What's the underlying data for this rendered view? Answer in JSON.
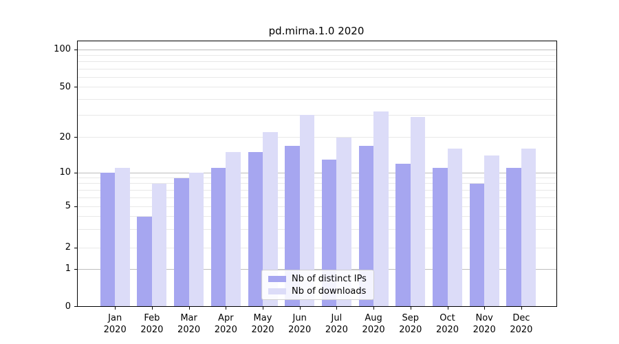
{
  "chart_data": {
    "type": "bar",
    "title": "pd.mirna.1.0 2020",
    "categories": [
      "Jan",
      "Feb",
      "Mar",
      "Apr",
      "May",
      "Jun",
      "Jul",
      "Aug",
      "Sep",
      "Oct",
      "Nov",
      "Dec"
    ],
    "category_year": "2020",
    "series": [
      {
        "name": "Nb of distinct IPs",
        "color": "#a6a6f0",
        "values": [
          10,
          4,
          9,
          11,
          15,
          17,
          13,
          17,
          12,
          11,
          8,
          11
        ]
      },
      {
        "name": "Nb of downloads",
        "color": "#dcdcf8",
        "values": [
          11,
          8,
          10,
          15,
          22,
          30,
          20,
          32,
          29,
          16,
          14,
          16
        ]
      }
    ],
    "y_axis": {
      "scale": "symlog",
      "tick_values": [
        0,
        1,
        2,
        5,
        10,
        20,
        50,
        100
      ],
      "tick_labels": [
        "0",
        "1",
        "2",
        "5",
        "10",
        "20",
        "50",
        "100"
      ],
      "minor_gridlines": [
        3,
        4,
        6,
        7,
        8,
        9,
        30,
        40,
        60,
        70,
        80,
        90
      ],
      "ylim": [
        0,
        116
      ],
      "major_gridline_values": [
        1,
        10,
        100
      ]
    },
    "xlabel": "",
    "ylabel": "",
    "grid": true,
    "legend": {
      "position": "lower-center-inside",
      "entries": [
        "Nb of distinct IPs",
        "Nb of downloads"
      ]
    }
  },
  "colors": {
    "major_grid": "#bdbdbd",
    "minor_grid": "#e8e8e8",
    "spine": "#000000",
    "text": "#000000",
    "background": "#ffffff"
  }
}
